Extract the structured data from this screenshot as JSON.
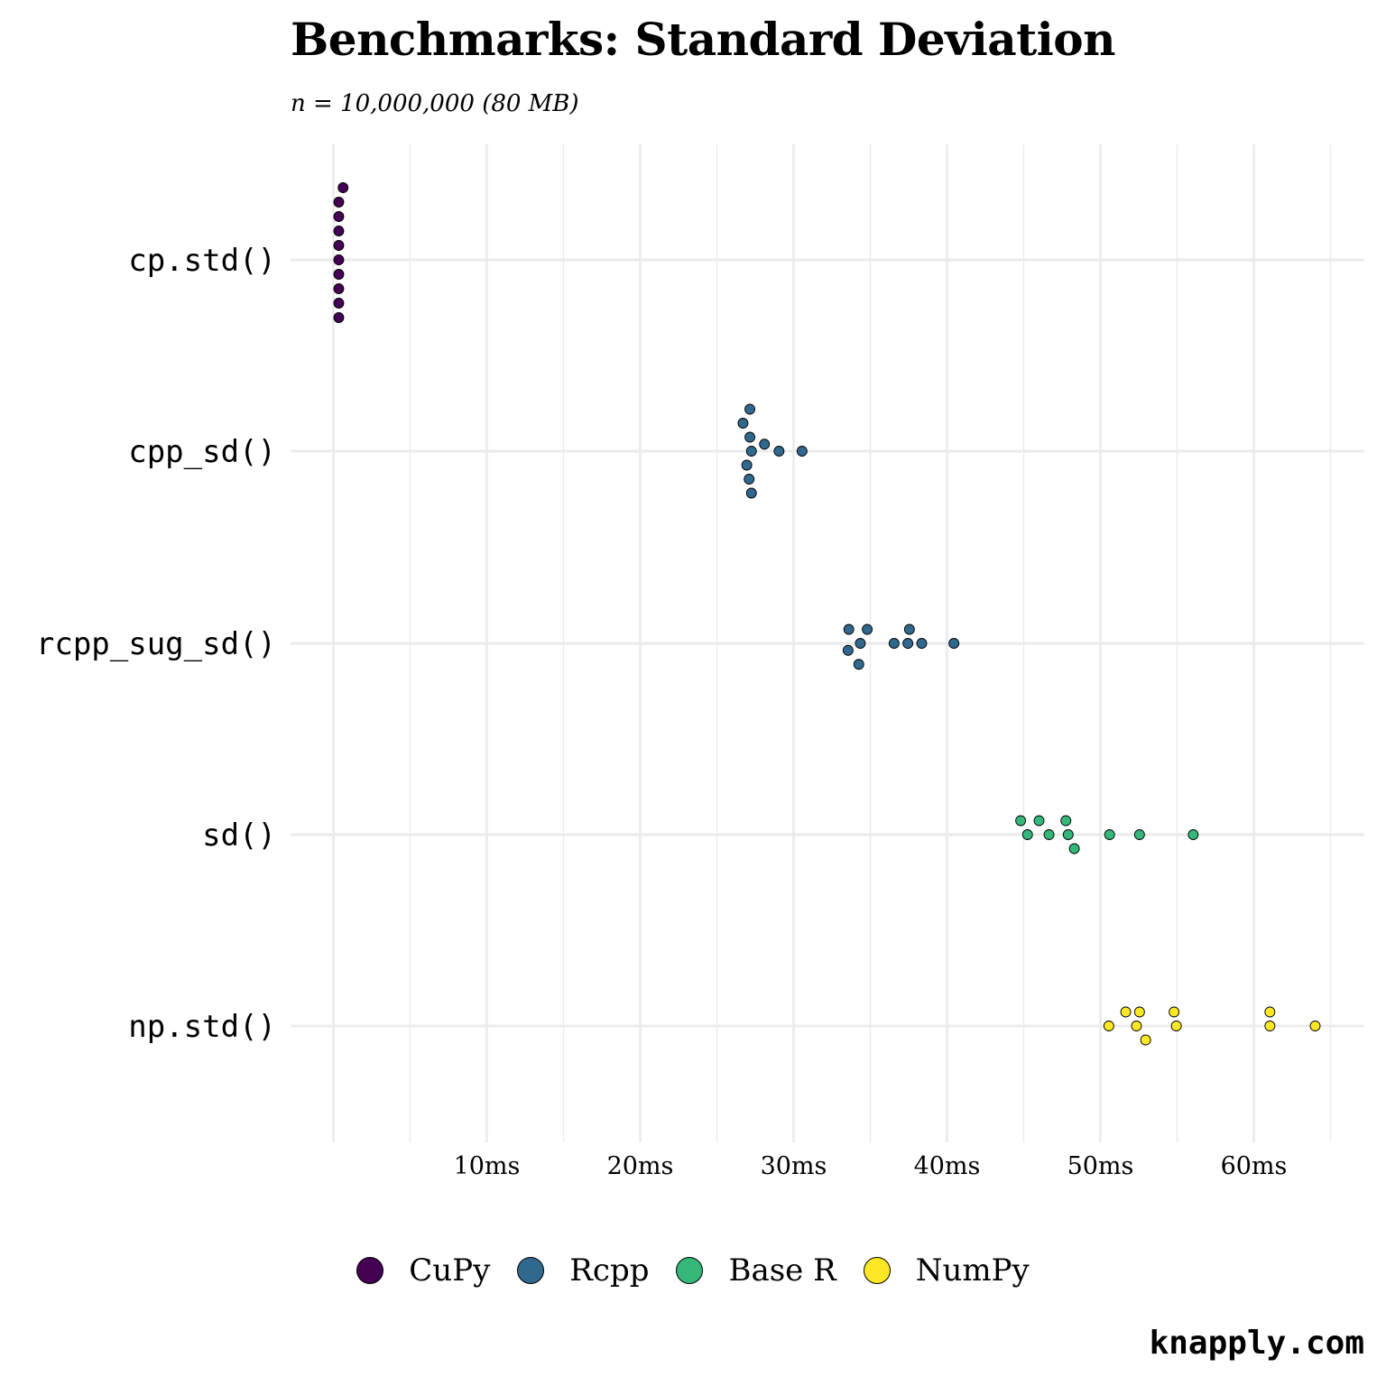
{
  "chart_data": {
    "type": "scatter",
    "title": "Benchmarks: Standard Deviation",
    "subtitle": "n = 10,000,000 (80 MB)",
    "xlabel": "",
    "ylabel": "",
    "xlim": [
      0,
      65
    ],
    "x_ticks": [
      10,
      20,
      30,
      40,
      50,
      60
    ],
    "x_tick_labels": [
      "10ms",
      "20ms",
      "30ms",
      "40ms",
      "50ms",
      "60ms"
    ],
    "x_unit": "ms",
    "grid": true,
    "legend_position": "bottom",
    "categories": [
      "cp.std()",
      "cpp_sd()",
      "rcpp_sug_sd()",
      "sd()",
      "np.std()"
    ],
    "series": [
      {
        "name": "CuPy",
        "color": "#440154",
        "points": [
          {
            "category": "cp.std()",
            "x": [
              0.63,
              0.35,
              0.35,
              0.35,
              0.35,
              0.35,
              0.35,
              0.35,
              0.35,
              0.35
            ]
          }
        ]
      },
      {
        "name": "Rcpp",
        "color": "#31688E",
        "points": [
          {
            "category": "cpp_sd()",
            "x": [
              27.25,
              27.15,
              26.95,
              26.7,
              28.1,
              29.05,
              30.55,
              27.1,
              27.15,
              27.25
            ]
          },
          {
            "category": "rcpp_sug_sd()",
            "x": [
              34.35,
              33.6,
              33.55,
              34.25,
              34.8,
              36.55,
              37.45,
              37.55,
              38.35,
              40.45
            ]
          }
        ]
      },
      {
        "name": "Base R",
        "color": "#35B779",
        "points": [
          {
            "category": "sd()",
            "x": [
              45.25,
              46.65,
              47.9,
              44.8,
              46.0,
              47.75,
              48.3,
              50.6,
              52.55,
              56.05
            ]
          }
        ]
      },
      {
        "name": "NumPy",
        "color": "#FDE725",
        "points": [
          {
            "category": "np.std()",
            "x": [
              54.95,
              61.05,
              52.35,
              50.55,
              51.65,
              52.55,
              52.95,
              54.8,
              61.05,
              64.0
            ]
          }
        ]
      }
    ]
  },
  "footer": "knapply.com"
}
